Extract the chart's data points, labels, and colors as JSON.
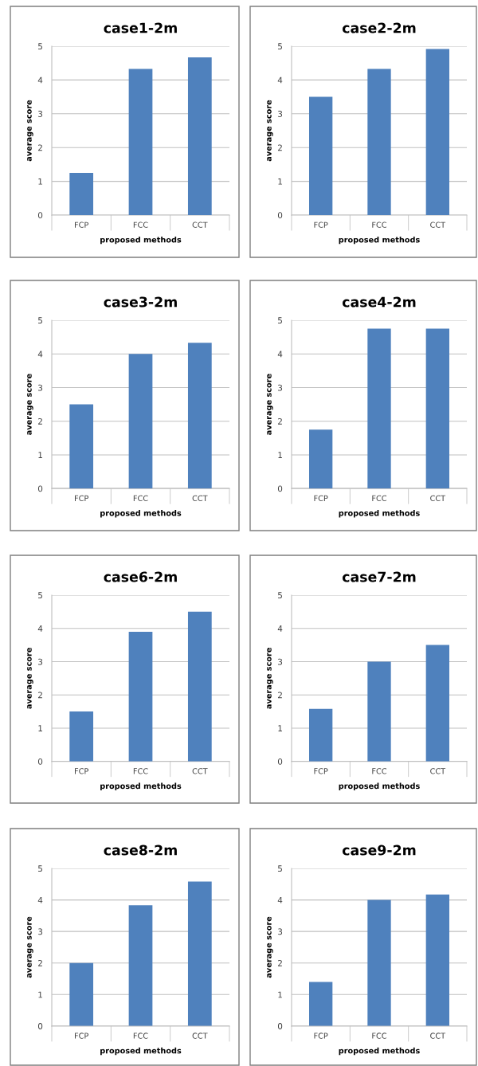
{
  "chart_data": [
    {
      "type": "bar",
      "title": "case1-2m",
      "xlabel": "proposed methods",
      "ylabel": "average score",
      "categories": [
        "FCP",
        "FCC",
        "CCT"
      ],
      "values": [
        1.25,
        4.33,
        4.67
      ],
      "color": "#4f81bd",
      "ylim": [
        0,
        5
      ],
      "yticks": [
        0,
        1,
        2,
        3,
        4,
        5
      ],
      "grid": "y"
    },
    {
      "type": "bar",
      "title": "case2-2m",
      "xlabel": "proposed methods",
      "ylabel": "average score",
      "categories": [
        "FCP",
        "FCC",
        "CCT"
      ],
      "values": [
        3.5,
        4.33,
        4.92
      ],
      "color": "#4f81bd",
      "ylim": [
        0,
        5
      ],
      "yticks": [
        0,
        1,
        2,
        3,
        4,
        5
      ],
      "grid": "y"
    },
    {
      "type": "bar",
      "title": "case3-2m",
      "xlabel": "proposed methods",
      "ylabel": "average score",
      "categories": [
        "FCP",
        "FCC",
        "CCT"
      ],
      "values": [
        2.5,
        4.0,
        4.33
      ],
      "color": "#4f81bd",
      "ylim": [
        0,
        5
      ],
      "yticks": [
        0,
        1,
        2,
        3,
        4,
        5
      ],
      "grid": "y"
    },
    {
      "type": "bar",
      "title": "case4-2m",
      "xlabel": "proposed methods",
      "ylabel": "average score",
      "categories": [
        "FCP",
        "FCC",
        "CCT"
      ],
      "values": [
        1.75,
        4.75,
        4.75
      ],
      "color": "#4f81bd",
      "ylim": [
        0,
        5
      ],
      "yticks": [
        0,
        1,
        2,
        3,
        4,
        5
      ],
      "grid": "y"
    },
    {
      "type": "bar",
      "title": "case6-2m",
      "xlabel": "proposed methods",
      "ylabel": "average score",
      "categories": [
        "FCP",
        "FCC",
        "CCT"
      ],
      "values": [
        1.5,
        3.9,
        4.5
      ],
      "color": "#4f81bd",
      "ylim": [
        0,
        5
      ],
      "yticks": [
        0,
        1,
        2,
        3,
        4,
        5
      ],
      "grid": "y"
    },
    {
      "type": "bar",
      "title": "case7-2m",
      "xlabel": "proposed methods",
      "ylabel": "average score",
      "categories": [
        "FCP",
        "FCC",
        "CCT"
      ],
      "values": [
        1.58,
        3.0,
        3.5
      ],
      "color": "#4f81bd",
      "ylim": [
        0,
        5
      ],
      "yticks": [
        0,
        1,
        2,
        3,
        4,
        5
      ],
      "grid": "y"
    },
    {
      "type": "bar",
      "title": "case8-2m",
      "xlabel": "proposed methods",
      "ylabel": "average score",
      "categories": [
        "FCP",
        "FCC",
        "CCT"
      ],
      "values": [
        2.0,
        3.83,
        4.58
      ],
      "color": "#4f81bd",
      "ylim": [
        0,
        5
      ],
      "yticks": [
        0,
        1,
        2,
        3,
        4,
        5
      ],
      "grid": "y"
    },
    {
      "type": "bar",
      "title": "case9-2m",
      "xlabel": "proposed methods",
      "ylabel": "average score",
      "categories": [
        "FCP",
        "FCC",
        "CCT"
      ],
      "values": [
        1.4,
        4.0,
        4.17
      ],
      "color": "#4f81bd",
      "ylim": [
        0,
        5
      ],
      "yticks": [
        0,
        1,
        2,
        3,
        4,
        5
      ],
      "grid": "y"
    }
  ]
}
